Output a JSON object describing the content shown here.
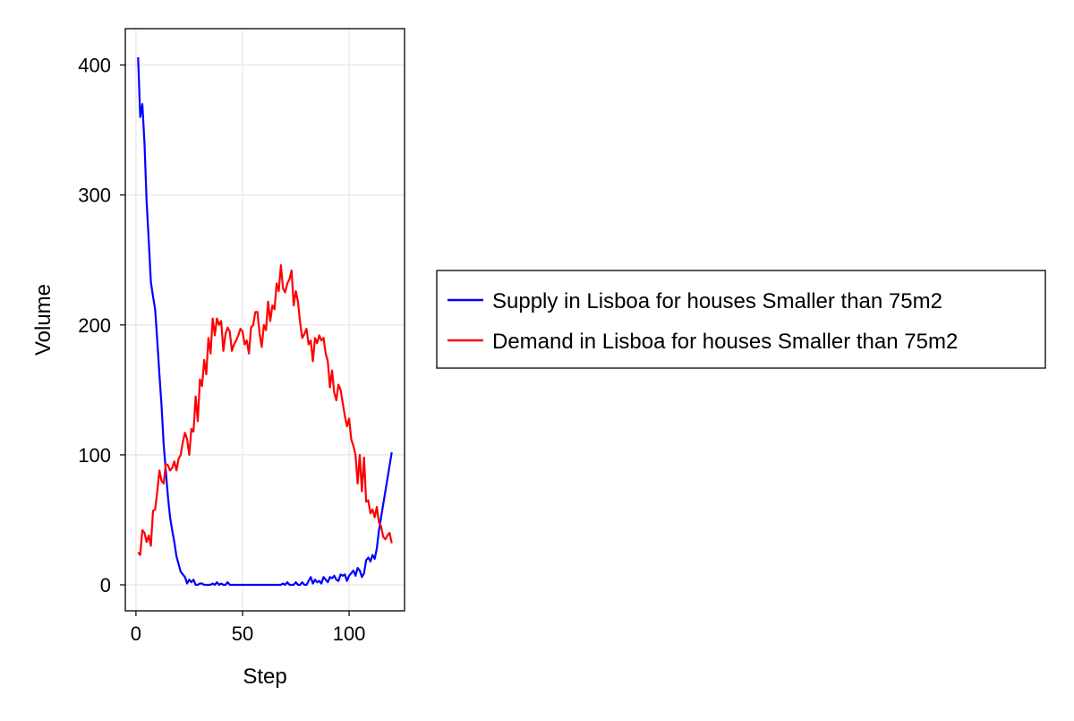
{
  "chart_data": {
    "type": "line",
    "title": "",
    "xlabel": "Step",
    "ylabel": "Volume",
    "xlim": [
      -5,
      126
    ],
    "ylim": [
      -20,
      428
    ],
    "xticks": [
      0,
      50,
      100
    ],
    "yticks": [
      0,
      100,
      200,
      300,
      400
    ],
    "grid": true,
    "legend_position": "right",
    "x": [
      1,
      2,
      3,
      4,
      5,
      6,
      7,
      8,
      9,
      10,
      11,
      12,
      13,
      14,
      15,
      16,
      17,
      18,
      19,
      20,
      21,
      22,
      23,
      24,
      25,
      26,
      27,
      28,
      29,
      30,
      31,
      32,
      33,
      34,
      35,
      36,
      37,
      38,
      39,
      40,
      41,
      42,
      43,
      44,
      45,
      46,
      47,
      48,
      49,
      50,
      51,
      52,
      53,
      54,
      55,
      56,
      57,
      58,
      59,
      60,
      61,
      62,
      63,
      64,
      65,
      66,
      67,
      68,
      69,
      70,
      71,
      72,
      73,
      74,
      75,
      76,
      77,
      78,
      79,
      80,
      81,
      82,
      83,
      84,
      85,
      86,
      87,
      88,
      89,
      90,
      91,
      92,
      93,
      94,
      95,
      96,
      97,
      98,
      99,
      100,
      101,
      102,
      103,
      104,
      105,
      106,
      107,
      108,
      109,
      110,
      111,
      112,
      113,
      114,
      115,
      116,
      117,
      118,
      119,
      120
    ],
    "series": [
      {
        "name": "Supply in Lisboa for houses Smaller than 75m2",
        "color": "#0000ff",
        "values": [
          406,
          360,
          370,
          340,
          295,
          265,
          233,
          222,
          212,
          188,
          162,
          138,
          108,
          88,
          68,
          52,
          42,
          33,
          22,
          16,
          10,
          8,
          6,
          1,
          4,
          2,
          4,
          0,
          0,
          1,
          1,
          0,
          0,
          0,
          0,
          1,
          0,
          2,
          0,
          1,
          0,
          0,
          2,
          0,
          0,
          0,
          0,
          0,
          0,
          0,
          0,
          0,
          0,
          0,
          0,
          0,
          0,
          0,
          0,
          0,
          0,
          0,
          0,
          0,
          0,
          0,
          0,
          0,
          1,
          0,
          2,
          0,
          0,
          0,
          2,
          0,
          0,
          2,
          0,
          0,
          3,
          6,
          1,
          4,
          2,
          3,
          1,
          6,
          4,
          2,
          6,
          5,
          7,
          4,
          3,
          8,
          7,
          8,
          3,
          7,
          9,
          11,
          7,
          13,
          11,
          6,
          9,
          19,
          21,
          18,
          23,
          20,
          28,
          42,
          52,
          62,
          72,
          82,
          92,
          102
        ]
      },
      {
        "name": "Demand in Lisboa for houses Smaller than 75m2",
        "color": "#ff0000",
        "values": [
          25,
          23,
          42,
          40,
          33,
          38,
          30,
          57,
          58,
          72,
          88,
          80,
          78,
          93,
          92,
          88,
          90,
          95,
          88,
          97,
          100,
          110,
          117,
          112,
          100,
          120,
          118,
          145,
          126,
          158,
          153,
          173,
          162,
          190,
          178,
          205,
          192,
          205,
          200,
          203,
          180,
          193,
          198,
          195,
          180,
          185,
          188,
          192,
          197,
          195,
          185,
          188,
          178,
          198,
          200,
          210,
          210,
          193,
          183,
          200,
          196,
          218,
          203,
          215,
          212,
          232,
          226,
          246,
          228,
          225,
          232,
          235,
          242,
          215,
          226,
          218,
          202,
          190,
          193,
          197,
          185,
          188,
          172,
          190,
          186,
          192,
          188,
          190,
          178,
          172,
          152,
          165,
          148,
          142,
          154,
          150,
          140,
          130,
          122,
          128,
          112,
          107,
          100,
          78,
          100,
          72,
          98,
          64,
          65,
          55,
          58,
          52,
          60,
          48,
          45,
          37,
          35,
          38,
          40,
          32
        ]
      }
    ]
  }
}
